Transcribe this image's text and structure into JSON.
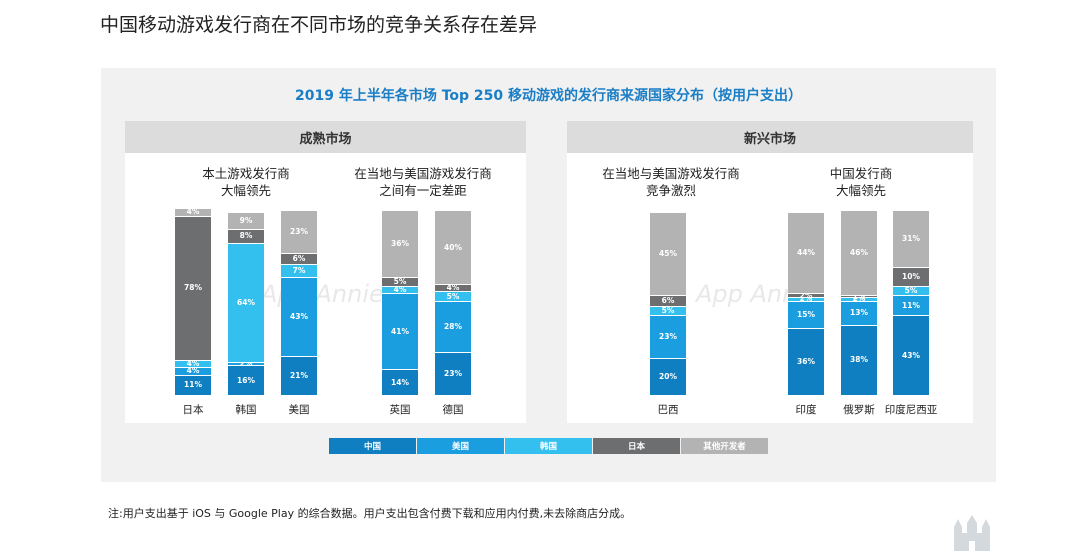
{
  "page_title": "中国移动游戏发行商在不同市场的竞争关系存在差异",
  "chart_data": {
    "type": "bar",
    "title": "2019 年上半年各市场 Top 250 移动游戏的发行商来源国家分布（按用户支出）",
    "stacked": true,
    "percent": true,
    "markets": [
      {
        "name": "成熟市场",
        "groups": [
          {
            "label": "本土游戏发行商\n大幅领先",
            "categories": [
              "日本",
              "韩国",
              "美国"
            ]
          },
          {
            "label": "在当地与美国游戏发行商\n之间有一定差距",
            "categories": [
              "英国",
              "德国"
            ]
          }
        ]
      },
      {
        "name": "新兴市场",
        "groups": [
          {
            "label": "在当地与美国游戏发行商\n竞争激烈",
            "categories": [
              "巴西"
            ]
          },
          {
            "label": "中国发行商\n大幅领先",
            "categories": [
              "印度",
              "俄罗斯",
              "印度尼西亚"
            ]
          }
        ]
      }
    ],
    "categories": [
      "日本",
      "韩国",
      "美国",
      "英国",
      "德国",
      "巴西",
      "印度",
      "俄罗斯",
      "印度尼西亚"
    ],
    "series": [
      {
        "name": "中国",
        "color": "#0f7fc1",
        "values": [
          11,
          16,
          21,
          14,
          23,
          20,
          36,
          38,
          43
        ]
      },
      {
        "name": "美国",
        "color": "#1a9ee0",
        "values": [
          4,
          2,
          43,
          41,
          28,
          23,
          15,
          13,
          11
        ]
      },
      {
        "name": "韩国",
        "color": "#34c0ee",
        "values": [
          4,
          64,
          7,
          4,
          5,
          5,
          2,
          2,
          5
        ]
      },
      {
        "name": "日本",
        "color": "#6d6e70",
        "values": [
          78,
          8,
          6,
          5,
          4,
          6,
          2,
          1,
          10
        ]
      },
      {
        "name": "其他开发者",
        "color": "#b3b3b3",
        "values": [
          4,
          9,
          23,
          36,
          40,
          45,
          44,
          46,
          31
        ]
      }
    ],
    "ylim": [
      0,
      100
    ],
    "legend": "bottom"
  },
  "watermark": "App Annie",
  "note": "注:用户支出基于 iOS 与 Google Play 的综合数据。用户支出包含付费下载和应用内付费,未去除商店分成。"
}
